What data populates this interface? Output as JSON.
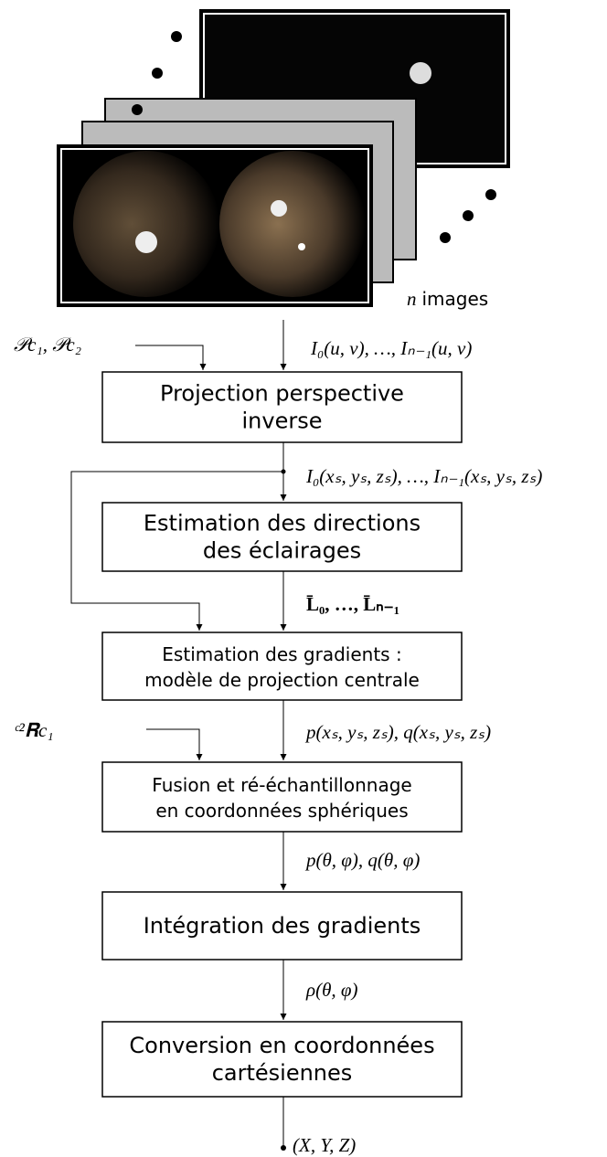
{
  "image_stack": {
    "count": "n",
    "caption": "images"
  },
  "inputs": [
    {
      "label": "𝒫c₁, 𝒫c₂"
    },
    {
      "label": "ᶜ²𝐑c₁"
    }
  ],
  "nodes": [
    {
      "lines": [
        "Projection perspective",
        "inverse"
      ]
    },
    {
      "lines": [
        "Estimation des directions",
        "des éclairages"
      ]
    },
    {
      "lines": [
        "Estimation des gradients :",
        "modèle de projection centrale"
      ]
    },
    {
      "lines": [
        "Fusion et ré-échantillonnage",
        "en coordonnées sphériques"
      ]
    },
    {
      "lines": [
        "Intégration des gradients"
      ]
    },
    {
      "lines": [
        "Conversion en coordonnées",
        "cartésiennes"
      ]
    }
  ],
  "edges": [
    {
      "label": "I₀(u, v), …, Iₙ₋₁(u, v)"
    },
    {
      "label": "I₀(xₛ, yₛ, zₛ), …, Iₙ₋₁(xₛ, yₛ, zₛ)"
    },
    {
      "label": "L̄₀, …, L̄ₙ₋₁"
    },
    {
      "label": "p(xₛ, yₛ, zₛ), q(xₛ, yₛ, zₛ)"
    },
    {
      "label": "p(θ, φ), q(θ, φ)"
    },
    {
      "label": "ρ(θ, φ)"
    }
  ],
  "output": {
    "label": "(X, Y, Z)"
  }
}
